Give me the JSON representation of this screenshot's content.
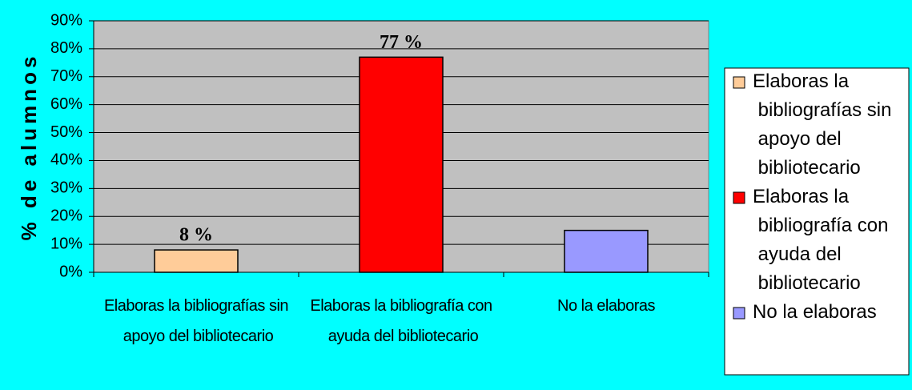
{
  "chart_data": {
    "type": "bar",
    "y_label": "% de alumnos",
    "categories": [
      "Elaboras la bibliografías sin apoyo del bibliotecario",
      "Elaboras la bibliografía con ayuda del bibliotecario",
      "No la elaboras"
    ],
    "values": [
      8,
      77,
      15
    ],
    "value_labels": [
      "8 %",
      "77 %",
      null
    ],
    "colors": [
      "#ffcc99",
      "#ff0000",
      "#9999ff"
    ],
    "ylim": [
      0,
      90
    ],
    "yticks": [
      {
        "value": 0,
        "label": "0%"
      },
      {
        "value": 10,
        "label": "10%"
      },
      {
        "value": 20,
        "label": "20%"
      },
      {
        "value": 30,
        "label": "30%"
      },
      {
        "value": 40,
        "label": "40%"
      },
      {
        "value": 50,
        "label": "50%"
      },
      {
        "value": 60,
        "label": "60%"
      },
      {
        "value": 70,
        "label": "70%"
      },
      {
        "value": 80,
        "label": "80%"
      },
      {
        "value": 90,
        "label": "90%"
      }
    ],
    "grid": true,
    "legend": "right"
  }
}
